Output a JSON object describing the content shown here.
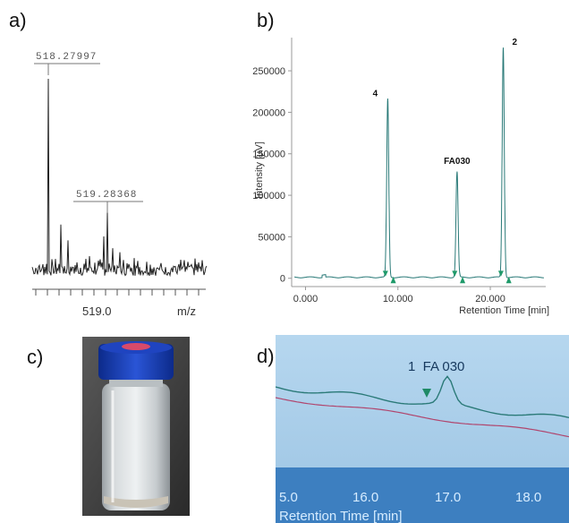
{
  "panels": {
    "a": "a)",
    "b": "b)",
    "c": "c)",
    "d": "d)"
  },
  "chart_data": [
    {
      "id": "a",
      "type": "line",
      "title": "",
      "xlabel": "m/z",
      "ylabel": "",
      "x_tick_labels": [
        "519.0"
      ],
      "peak_labels": [
        "518.27997",
        "519.28368"
      ],
      "peaks": [
        {
          "label": "518.27997",
          "rel_intensity": 1.0
        },
        {
          "label": "519.28368",
          "rel_intensity": 0.32
        }
      ],
      "grid": false
    },
    {
      "id": "b",
      "type": "line",
      "title": "",
      "xlabel": "Retention Time [min]",
      "ylabel": "Intensity [µV]",
      "xlim": [
        -1.5,
        26
      ],
      "ylim": [
        -10000,
        290000
      ],
      "x_ticks": [
        0,
        10,
        20
      ],
      "x_tick_labels": [
        "0.000",
        "10.000",
        "20.000"
      ],
      "y_ticks": [
        0,
        50000,
        100000,
        150000,
        200000,
        250000
      ],
      "y_tick_labels": [
        "0",
        "50000",
        "100000",
        "150000",
        "200000",
        "250000"
      ],
      "series": [
        {
          "values_description": "chromatogram",
          "peaks": [
            {
              "label": "4",
              "x": 8.9,
              "y": 215000
            },
            {
              "label": "FA030",
              "x": 16.4,
              "y": 127000
            },
            {
              "label": "2",
              "x": 21.4,
              "y": 277000
            }
          ]
        }
      ],
      "grid": false,
      "colors": {
        "trace": "#2a7a78",
        "marker": "#1f9a6a"
      }
    },
    {
      "id": "d",
      "type": "line",
      "title": "",
      "xlabel": "Retention Time [min]",
      "ylabel": "",
      "x_tick_labels": [
        "5.0",
        "16.0",
        "17.0",
        "18.0"
      ],
      "peak_label": "1  FA 030",
      "colors": {
        "screen_bg": "#a9cde8",
        "band": "#3d7fc0",
        "trace": "#2b7a78",
        "baseline": "#b0466e"
      }
    }
  ]
}
